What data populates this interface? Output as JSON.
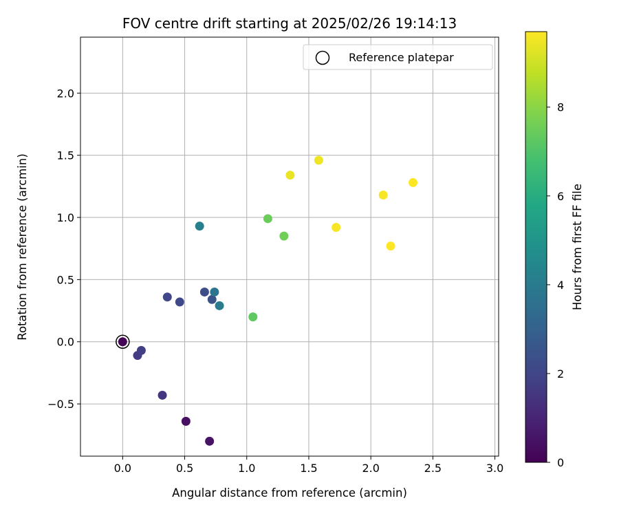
{
  "chart_data": {
    "type": "scatter",
    "title": "FOV centre drift starting at 2025/02/26 19:14:13",
    "xlabel": "Angular distance from reference (arcmin)",
    "ylabel": "Rotation from reference (arcmin)",
    "xlim": [
      -0.34,
      3.03
    ],
    "ylim": [
      -0.92,
      2.45
    ],
    "xticks": [
      "0.0",
      "0.5",
      "1.0",
      "1.5",
      "2.0",
      "2.5",
      "3.0"
    ],
    "xtick_values": [
      0,
      0.5,
      1.0,
      1.5,
      2.0,
      2.5,
      3.0
    ],
    "yticks": [
      "−0.5",
      "0.0",
      "0.5",
      "1.0",
      "1.5",
      "2.0"
    ],
    "ytick_values": [
      -0.5,
      0,
      0.5,
      1.0,
      1.5,
      2.0
    ],
    "grid": true,
    "colorbar": {
      "label": "Hours from first FF file",
      "min": 0,
      "max": 9.7,
      "ticks": [
        "0",
        "2",
        "4",
        "6",
        "8"
      ],
      "tick_values": [
        0,
        2,
        4,
        6,
        8
      ],
      "colormap": "viridis"
    },
    "legend": {
      "position": "top-right",
      "entries": [
        "Reference platepar"
      ]
    },
    "reference_point": {
      "x": 0,
      "y": 0
    },
    "points": [
      {
        "x": 0.0,
        "y": 0.0,
        "hours": 0.1
      },
      {
        "x": 0.51,
        "y": -0.64,
        "hours": 0.4
      },
      {
        "x": 0.7,
        "y": -0.8,
        "hours": 0.5
      },
      {
        "x": 0.32,
        "y": -0.43,
        "hours": 1.5
      },
      {
        "x": 0.12,
        "y": -0.11,
        "hours": 1.7
      },
      {
        "x": 0.15,
        "y": -0.07,
        "hours": 1.8
      },
      {
        "x": 0.36,
        "y": 0.36,
        "hours": 2.0
      },
      {
        "x": 0.46,
        "y": 0.32,
        "hours": 2.1
      },
      {
        "x": 0.66,
        "y": 0.4,
        "hours": 2.3
      },
      {
        "x": 0.72,
        "y": 0.34,
        "hours": 2.5
      },
      {
        "x": 0.74,
        "y": 0.4,
        "hours": 3.8
      },
      {
        "x": 0.78,
        "y": 0.29,
        "hours": 4.0
      },
      {
        "x": 0.62,
        "y": 0.93,
        "hours": 4.2
      },
      {
        "x": 1.05,
        "y": 0.2,
        "hours": 7.3
      },
      {
        "x": 1.17,
        "y": 0.99,
        "hours": 7.5
      },
      {
        "x": 1.3,
        "y": 0.85,
        "hours": 7.6
      },
      {
        "x": 1.35,
        "y": 1.34,
        "hours": 9.4
      },
      {
        "x": 1.58,
        "y": 1.46,
        "hours": 9.5
      },
      {
        "x": 1.72,
        "y": 0.92,
        "hours": 9.6
      },
      {
        "x": 2.1,
        "y": 1.18,
        "hours": 9.6
      },
      {
        "x": 2.16,
        "y": 0.77,
        "hours": 9.7
      },
      {
        "x": 2.34,
        "y": 1.28,
        "hours": 9.7
      }
    ]
  }
}
